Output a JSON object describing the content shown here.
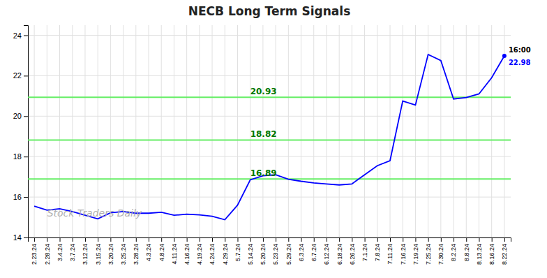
{
  "chart_data": {
    "type": "line",
    "title": "NECB Long Term Signals",
    "color": "blue",
    "grid": true,
    "ylim": [
      14,
      24.5
    ],
    "yticks": [
      14,
      16,
      18,
      20,
      22,
      24
    ],
    "categories": [
      "2.23.24",
      "2.28.24",
      "3.4.24",
      "3.7.24",
      "3.12.24",
      "3.15.24",
      "3.20.24",
      "3.25.24",
      "3.28.24",
      "4.3.24",
      "4.8.24",
      "4.11.24",
      "4.16.24",
      "4.19.24",
      "4.24.24",
      "4.29.24",
      "5.7.24",
      "5.14.24",
      "5.20.24",
      "5.23.24",
      "5.29.24",
      "6.3.24",
      "6.7.24",
      "6.12.24",
      "6.18.24",
      "6.26.24",
      "7.1.24",
      "7.8.24",
      "7.11.24",
      "7.16.24",
      "7.19.24",
      "7.25.24",
      "7.30.24",
      "8.2.24",
      "8.8.24",
      "8.13.24",
      "8.16.24",
      "8.22.24"
    ],
    "values": [
      15.55,
      15.35,
      15.42,
      15.28,
      15.1,
      14.92,
      15.22,
      15.28,
      15.2,
      15.2,
      15.25,
      15.1,
      15.15,
      15.12,
      15.05,
      14.88,
      15.6,
      16.85,
      17.05,
      17.1,
      16.88,
      16.78,
      16.7,
      16.65,
      16.6,
      16.65,
      17.1,
      17.55,
      17.8,
      20.75,
      20.55,
      23.05,
      22.75,
      20.85,
      20.92,
      21.1,
      21.9,
      22.98
    ],
    "hlines": [
      {
        "value": 16.89,
        "label": "16.89",
        "color": "#66ee66",
        "label_color": "#007700"
      },
      {
        "value": 18.82,
        "label": "18.82",
        "color": "#66ee66",
        "label_color": "#007700"
      },
      {
        "value": 20.93,
        "label": "20.93",
        "color": "#66ee66",
        "label_color": "#007700"
      }
    ],
    "end_labels": [
      {
        "text": "16:00",
        "color": "black"
      },
      {
        "text": "22.98",
        "color": "blue"
      }
    ],
    "watermark": {
      "text": "Stock Traders Daily",
      "color": "#b0b0b0"
    }
  }
}
